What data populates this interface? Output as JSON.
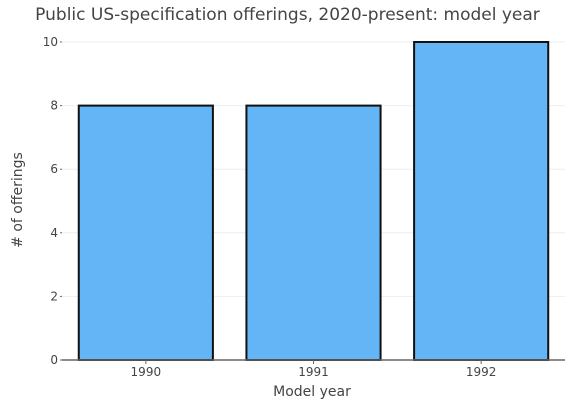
{
  "chart_data": {
    "type": "bar",
    "title": "Public US-specification offerings, 2020-present: model year",
    "xlabel": "Model year",
    "ylabel": "# of offerings",
    "categories": [
      "1990",
      "1991",
      "1992"
    ],
    "values": [
      8,
      8,
      10
    ],
    "ylim": [
      0,
      10
    ],
    "yticks": [
      0,
      2,
      4,
      6,
      8,
      10
    ],
    "grid": true,
    "legend": "none",
    "colors": {
      "bar_fill": "#64b5f6",
      "bar_stroke": "#111111",
      "grid": "#eeeeee",
      "axis": "#666666",
      "text": "#444444"
    }
  }
}
